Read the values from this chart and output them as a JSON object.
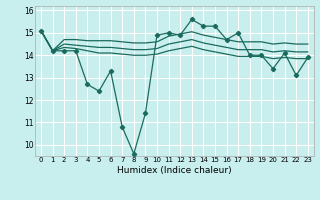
{
  "title": "",
  "xlabel": "Humidex (Indice chaleur)",
  "xlim": [
    -0.5,
    23.5
  ],
  "ylim": [
    9.5,
    16.2
  ],
  "yticks": [
    10,
    11,
    12,
    13,
    14,
    15,
    16
  ],
  "xticks": [
    0,
    1,
    2,
    3,
    4,
    5,
    6,
    7,
    8,
    9,
    10,
    11,
    12,
    13,
    14,
    15,
    16,
    17,
    18,
    19,
    20,
    21,
    22,
    23
  ],
  "bg_color": "#c8eeed",
  "line_color": "#1a6b5e",
  "grid_color": "#ffffff",
  "series_volatile": [
    15.1,
    14.2,
    14.2,
    14.2,
    12.7,
    12.4,
    13.3,
    10.8,
    9.6,
    11.4,
    14.9,
    15.0,
    14.9,
    15.6,
    15.3,
    15.3,
    14.7,
    15.0,
    14.0,
    14.0,
    13.4,
    14.1,
    13.1,
    13.9
  ],
  "series_smooth": [
    [
      15.1,
      14.2,
      14.35,
      14.3,
      14.2,
      14.1,
      14.1,
      14.05,
      14.0,
      14.0,
      14.05,
      14.2,
      14.3,
      14.4,
      14.25,
      14.15,
      14.05,
      13.95,
      13.95,
      13.95,
      13.85,
      13.9,
      13.85,
      13.85
    ],
    [
      15.1,
      14.2,
      14.5,
      14.45,
      14.4,
      14.35,
      14.35,
      14.3,
      14.25,
      14.25,
      14.3,
      14.5,
      14.6,
      14.7,
      14.55,
      14.45,
      14.35,
      14.25,
      14.25,
      14.25,
      14.15,
      14.2,
      14.15,
      14.15
    ],
    [
      15.1,
      14.2,
      14.7,
      14.7,
      14.65,
      14.65,
      14.65,
      14.6,
      14.55,
      14.55,
      14.6,
      14.85,
      14.95,
      15.05,
      14.9,
      14.8,
      14.7,
      14.6,
      14.6,
      14.6,
      14.5,
      14.55,
      14.5,
      14.5
    ]
  ]
}
